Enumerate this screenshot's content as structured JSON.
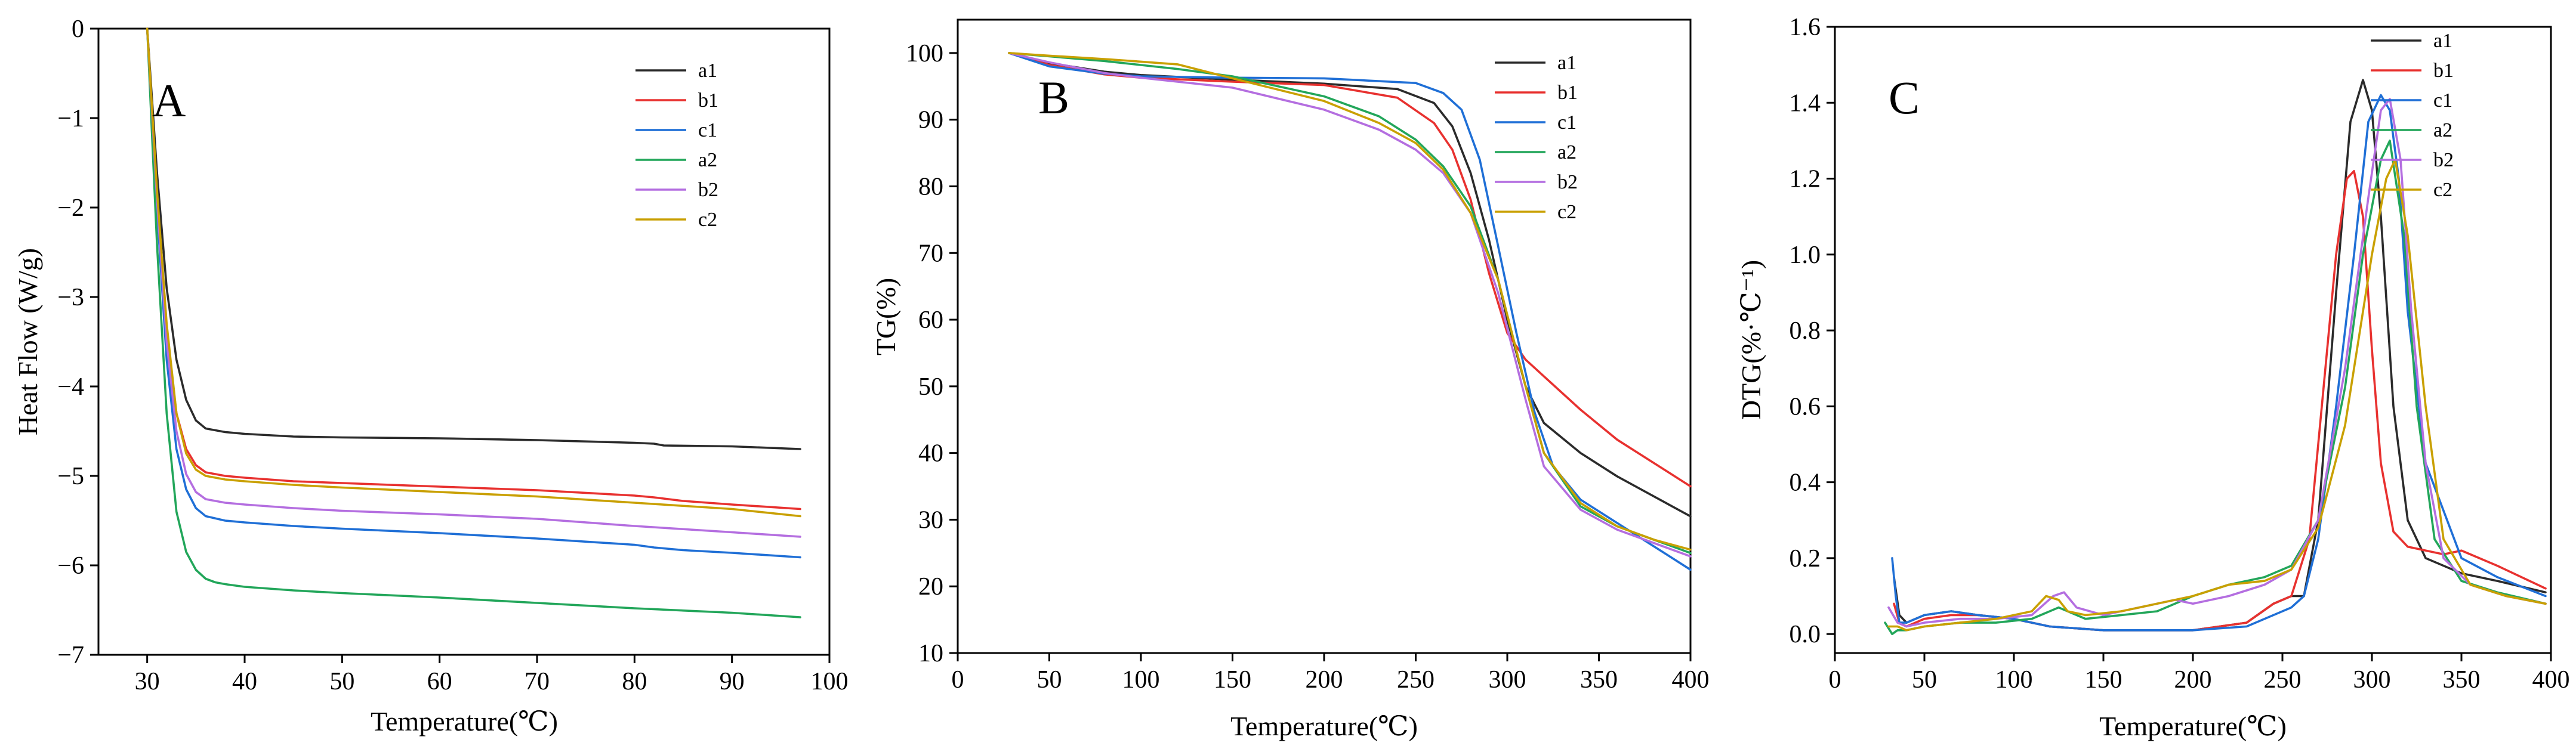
{
  "figure_title": "",
  "chart_data": [
    {
      "panel": "A",
      "type": "line",
      "title": "",
      "xlabel": "Temperature(℃)",
      "ylabel": "Heat Flow (W/g)",
      "xlim": [
        25,
        100
      ],
      "ylim": [
        -7,
        0
      ],
      "xticks": [
        30,
        40,
        50,
        60,
        70,
        80,
        90,
        100
      ],
      "yticks": [
        0,
        -1,
        -2,
        -3,
        -4,
        -5,
        -6,
        -7
      ],
      "xtick_labels": [
        "30",
        "40",
        "50",
        "60",
        "70",
        "80",
        "90",
        "100"
      ],
      "ytick_labels": [
        "0",
        "−1",
        "−2",
        "−3",
        "−4",
        "−5",
        "−6",
        "−7"
      ],
      "legend_position": "top-right",
      "series": [
        {
          "name": "a1",
          "color": "#2b2b2b",
          "x": [
            30,
            31,
            32,
            33,
            34,
            35,
            36,
            38,
            40,
            45,
            50,
            60,
            70,
            80,
            82,
            83,
            90,
            97
          ],
          "y": [
            0,
            -1.6,
            -2.9,
            -3.7,
            -4.15,
            -4.38,
            -4.47,
            -4.51,
            -4.53,
            -4.56,
            -4.57,
            -4.58,
            -4.6,
            -4.63,
            -4.64,
            -4.66,
            -4.67,
            -4.7
          ]
        },
        {
          "name": "b1",
          "color": "#e8312f",
          "x": [
            30,
            31,
            32,
            33,
            34,
            35,
            36,
            38,
            40,
            45,
            50,
            60,
            70,
            80,
            82,
            85,
            90,
            97
          ],
          "y": [
            0,
            -1.9,
            -3.4,
            -4.3,
            -4.7,
            -4.88,
            -4.96,
            -5.0,
            -5.02,
            -5.06,
            -5.08,
            -5.12,
            -5.16,
            -5.22,
            -5.24,
            -5.28,
            -5.32,
            -5.37
          ]
        },
        {
          "name": "c1",
          "color": "#1f6fd6",
          "x": [
            30,
            31,
            32,
            33,
            34,
            35,
            36,
            38,
            40,
            45,
            50,
            60,
            70,
            80,
            82,
            85,
            90,
            97
          ],
          "y": [
            0,
            -2.0,
            -3.7,
            -4.7,
            -5.15,
            -5.36,
            -5.45,
            -5.5,
            -5.52,
            -5.56,
            -5.59,
            -5.64,
            -5.7,
            -5.77,
            -5.8,
            -5.83,
            -5.86,
            -5.91
          ]
        },
        {
          "name": "a2",
          "color": "#22a65a",
          "x": [
            30,
            31,
            32,
            33,
            34,
            35,
            36,
            37,
            38,
            40,
            45,
            50,
            60,
            70,
            80,
            90,
            97
          ],
          "y": [
            0,
            -2.4,
            -4.3,
            -5.4,
            -5.85,
            -6.05,
            -6.15,
            -6.19,
            -6.21,
            -6.24,
            -6.28,
            -6.31,
            -6.36,
            -6.42,
            -6.48,
            -6.53,
            -6.58
          ]
        },
        {
          "name": "b2",
          "color": "#b46ee0",
          "x": [
            30,
            31,
            32,
            33,
            34,
            35,
            36,
            38,
            40,
            45,
            50,
            60,
            70,
            80,
            90,
            97
          ],
          "y": [
            0,
            -1.9,
            -3.5,
            -4.5,
            -4.98,
            -5.18,
            -5.26,
            -5.3,
            -5.32,
            -5.36,
            -5.39,
            -5.43,
            -5.48,
            -5.56,
            -5.63,
            -5.68
          ]
        },
        {
          "name": "c2",
          "color": "#c9a000",
          "x": [
            30,
            31,
            32,
            33,
            34,
            35,
            36,
            38,
            40,
            45,
            50,
            60,
            70,
            80,
            90,
            97
          ],
          "y": [
            0,
            -1.8,
            -3.3,
            -4.3,
            -4.75,
            -4.93,
            -5.0,
            -5.04,
            -5.06,
            -5.1,
            -5.13,
            -5.18,
            -5.23,
            -5.3,
            -5.37,
            -5.45
          ]
        }
      ]
    },
    {
      "panel": "B",
      "type": "line",
      "title": "",
      "xlabel": "Temperature(℃)",
      "ylabel": "TG(%)",
      "xlim": [
        0,
        400
      ],
      "ylim": [
        10,
        105
      ],
      "xticks": [
        0,
        50,
        100,
        150,
        200,
        250,
        300,
        350,
        400
      ],
      "yticks": [
        10,
        20,
        30,
        40,
        50,
        60,
        70,
        80,
        90,
        100
      ],
      "xtick_labels": [
        "0",
        "50",
        "100",
        "150",
        "200",
        "250",
        "300",
        "350",
        "400"
      ],
      "ytick_labels": [
        "10",
        "20",
        "30",
        "40",
        "50",
        "60",
        "70",
        "80",
        "90",
        "100"
      ],
      "legend_position": "top-right",
      "series": [
        {
          "name": "a1",
          "color": "#2b2b2b",
          "x": [
            28,
            50,
            80,
            100,
            150,
            200,
            240,
            260,
            270,
            280,
            290,
            300,
            310,
            320,
            340,
            360,
            380,
            400
          ],
          "y": [
            100,
            98.5,
            97.2,
            96.7,
            96,
            95.4,
            94.6,
            92.5,
            89,
            82,
            72,
            60,
            50,
            44.5,
            40,
            36.5,
            33.5,
            30.5
          ]
        },
        {
          "name": "b1",
          "color": "#e8312f",
          "x": [
            28,
            50,
            80,
            100,
            150,
            200,
            240,
            260,
            270,
            280,
            290,
            300,
            310,
            320,
            340,
            360,
            380,
            400
          ],
          "y": [
            100,
            98.2,
            96.8,
            96.3,
            95.7,
            95.2,
            93.3,
            89.5,
            85.5,
            78,
            67,
            58,
            54,
            51.5,
            46.5,
            42,
            38.5,
            35
          ]
        },
        {
          "name": "c1",
          "color": "#1f6fd6",
          "x": [
            28,
            50,
            80,
            100,
            150,
            200,
            250,
            265,
            275,
            285,
            295,
            305,
            315,
            325,
            340,
            360,
            380,
            400
          ],
          "y": [
            100,
            98,
            96.9,
            96.5,
            96.3,
            96.2,
            95.5,
            94,
            91.5,
            84,
            71,
            58,
            46,
            38,
            33,
            29.5,
            26,
            22.5
          ]
        },
        {
          "name": "a2",
          "color": "#22a65a",
          "x": [
            28,
            50,
            80,
            100,
            120,
            150,
            200,
            230,
            250,
            265,
            280,
            295,
            310,
            320,
            340,
            360,
            380,
            400
          ],
          "y": [
            100,
            99.5,
            98.8,
            98.2,
            97.6,
            96.5,
            93.5,
            90.5,
            87,
            83,
            77,
            66,
            50,
            40,
            32,
            29,
            27,
            25
          ]
        },
        {
          "name": "b2",
          "color": "#b46ee0",
          "x": [
            28,
            50,
            80,
            100,
            150,
            200,
            230,
            250,
            265,
            280,
            295,
            310,
            320,
            340,
            360,
            380,
            400
          ],
          "y": [
            100,
            98.6,
            97,
            96.3,
            94.8,
            91.5,
            88.5,
            85.5,
            82,
            76,
            64,
            48,
            38,
            31.5,
            28.5,
            26.5,
            24.5
          ]
        },
        {
          "name": "c2",
          "color": "#c9a000",
          "x": [
            28,
            50,
            80,
            100,
            120,
            150,
            200,
            230,
            250,
            265,
            280,
            295,
            310,
            320,
            340,
            360,
            380,
            400
          ],
          "y": [
            100,
            99.6,
            99.1,
            98.7,
            98.3,
            96.2,
            92.8,
            89.5,
            86.5,
            82.5,
            76,
            66,
            50,
            40,
            32.5,
            29,
            27,
            25.5
          ]
        }
      ]
    },
    {
      "panel": "C",
      "type": "line",
      "title": "",
      "xlabel": "Temperature(℃)",
      "ylabel": "DTG(%·℃⁻¹)",
      "xlim": [
        0,
        400
      ],
      "ylim": [
        -0.05,
        1.6
      ],
      "xticks": [
        0,
        50,
        100,
        150,
        200,
        250,
        300,
        350,
        400
      ],
      "yticks": [
        0.0,
        0.2,
        0.4,
        0.6,
        0.8,
        1.0,
        1.2,
        1.4,
        1.6
      ],
      "xtick_labels": [
        "0",
        "50",
        "100",
        "150",
        "200",
        "250",
        "300",
        "350",
        "400"
      ],
      "ytick_labels": [
        "0.0",
        "0.2",
        "0.4",
        "0.6",
        "0.8",
        "1.0",
        "1.2",
        "1.4",
        "1.6"
      ],
      "legend_position": "top-right",
      "series": [
        {
          "name": "a1",
          "color": "#2b2b2b",
          "x": [
            33,
            36,
            40,
            50,
            65,
            80,
            100,
            120,
            150,
            200,
            230,
            245,
            255,
            262,
            270,
            280,
            288,
            295,
            300,
            305,
            312,
            320,
            330,
            350,
            370,
            397
          ],
          "y": [
            0.15,
            0.05,
            0.03,
            0.05,
            0.06,
            0.05,
            0.04,
            0.02,
            0.01,
            0.01,
            0.03,
            0.08,
            0.1,
            0.1,
            0.3,
            0.9,
            1.35,
            1.46,
            1.38,
            1.1,
            0.6,
            0.3,
            0.2,
            0.16,
            0.14,
            0.11
          ]
        },
        {
          "name": "b1",
          "color": "#e8312f",
          "x": [
            33,
            36,
            40,
            50,
            65,
            80,
            100,
            120,
            150,
            200,
            230,
            245,
            255,
            265,
            272,
            280,
            286,
            290,
            295,
            300,
            305,
            312,
            320,
            340,
            350,
            370,
            397
          ],
          "y": [
            0.08,
            0.03,
            0.02,
            0.04,
            0.05,
            0.05,
            0.04,
            0.02,
            0.01,
            0.01,
            0.03,
            0.08,
            0.1,
            0.25,
            0.6,
            1.0,
            1.2,
            1.22,
            1.1,
            0.75,
            0.45,
            0.27,
            0.23,
            0.21,
            0.22,
            0.18,
            0.12
          ]
        },
        {
          "name": "c1",
          "color": "#1f6fd6",
          "x": [
            32,
            34,
            36,
            40,
            50,
            65,
            80,
            100,
            120,
            150,
            200,
            230,
            245,
            255,
            262,
            270,
            280,
            290,
            298,
            305,
            310,
            315,
            320,
            330,
            350,
            370,
            397
          ],
          "y": [
            0.2,
            0.1,
            0.03,
            0.03,
            0.05,
            0.06,
            0.05,
            0.04,
            0.02,
            0.01,
            0.01,
            0.02,
            0.05,
            0.07,
            0.1,
            0.25,
            0.6,
            1.0,
            1.35,
            1.42,
            1.38,
            1.2,
            0.85,
            0.45,
            0.2,
            0.15,
            0.1
          ]
        },
        {
          "name": "a2",
          "color": "#22a65a",
          "x": [
            28,
            32,
            35,
            40,
            50,
            70,
            90,
            110,
            120,
            125,
            130,
            140,
            160,
            180,
            200,
            220,
            240,
            255,
            270,
            285,
            295,
            305,
            310,
            318,
            325,
            335,
            350,
            370,
            397
          ],
          "y": [
            0.03,
            0.0,
            0.01,
            0.01,
            0.02,
            0.03,
            0.03,
            0.04,
            0.06,
            0.07,
            0.06,
            0.04,
            0.05,
            0.06,
            0.1,
            0.13,
            0.15,
            0.18,
            0.3,
            0.65,
            1.0,
            1.25,
            1.3,
            1.05,
            0.6,
            0.25,
            0.14,
            0.11,
            0.08
          ]
        },
        {
          "name": "b2",
          "color": "#b46ee0",
          "x": [
            30,
            35,
            40,
            50,
            70,
            90,
            110,
            122,
            128,
            135,
            150,
            170,
            190,
            200,
            220,
            240,
            255,
            270,
            285,
            298,
            305,
            310,
            316,
            322,
            330,
            340,
            355,
            375,
            397
          ],
          "y": [
            0.07,
            0.03,
            0.02,
            0.03,
            0.04,
            0.04,
            0.05,
            0.1,
            0.11,
            0.07,
            0.05,
            0.07,
            0.09,
            0.08,
            0.1,
            0.13,
            0.17,
            0.3,
            0.7,
            1.15,
            1.38,
            1.41,
            1.25,
            0.85,
            0.45,
            0.2,
            0.13,
            0.1,
            0.08
          ]
        },
        {
          "name": "c2",
          "color": "#c9a000",
          "x": [
            30,
            35,
            40,
            50,
            70,
            90,
            110,
            118,
            125,
            130,
            140,
            160,
            180,
            200,
            220,
            240,
            255,
            270,
            285,
            300,
            308,
            313,
            320,
            330,
            340,
            355,
            375,
            397
          ],
          "y": [
            0.02,
            0.02,
            0.01,
            0.02,
            0.03,
            0.04,
            0.06,
            0.1,
            0.09,
            0.06,
            0.05,
            0.06,
            0.08,
            0.1,
            0.13,
            0.14,
            0.17,
            0.28,
            0.55,
            1.0,
            1.2,
            1.25,
            1.05,
            0.6,
            0.25,
            0.13,
            0.1,
            0.08
          ]
        }
      ]
    }
  ]
}
